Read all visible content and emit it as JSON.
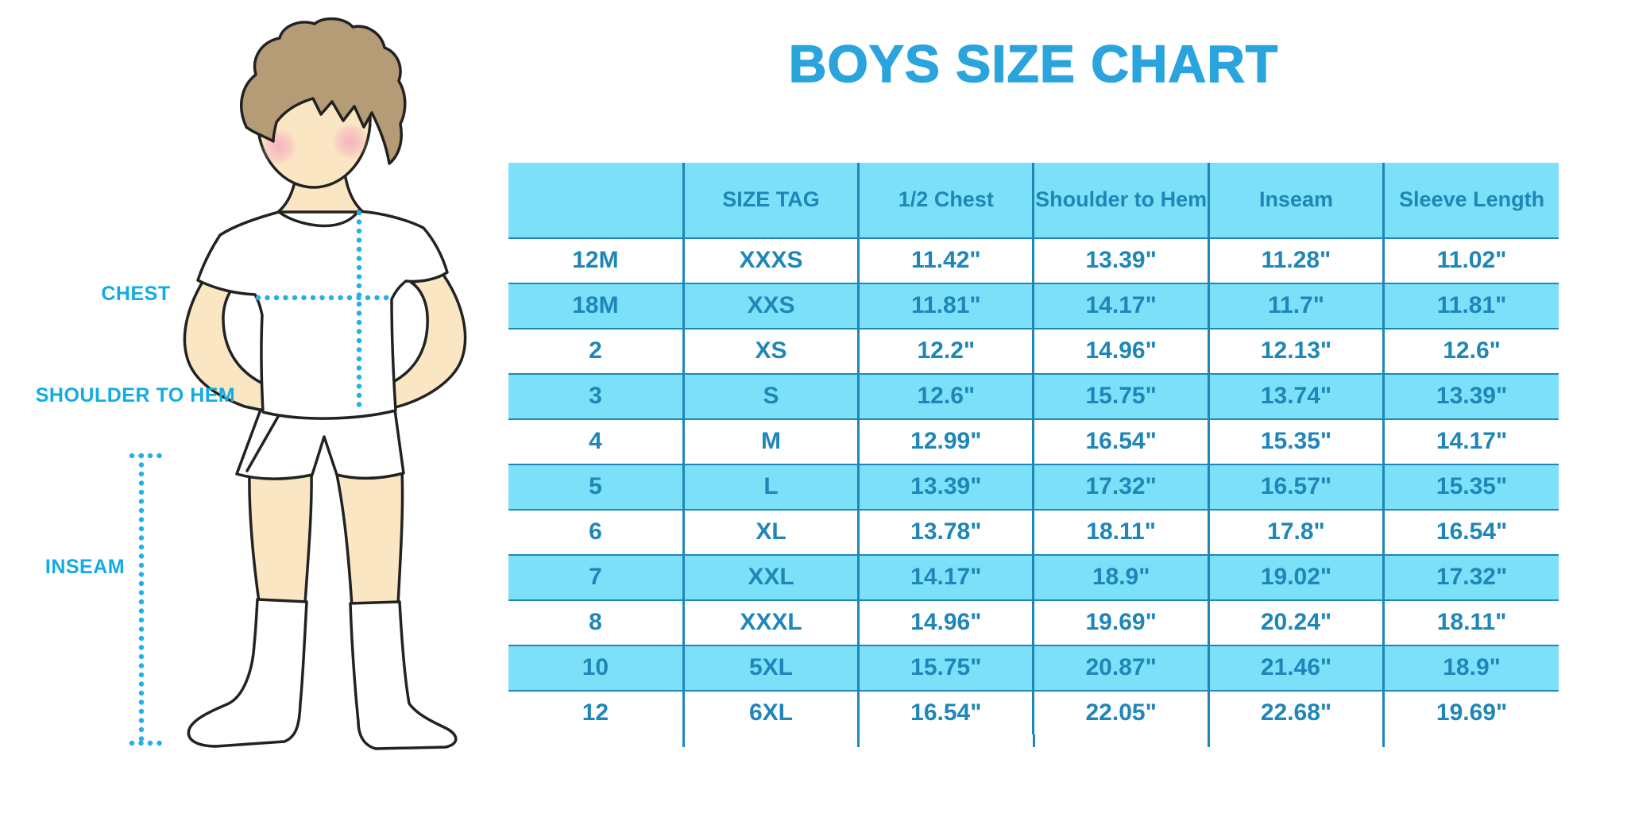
{
  "title": "BOYS SIZE CHART",
  "figure": {
    "labels": {
      "chest": "CHEST",
      "shoulder_to_hem": "SHOULDER TO HEM",
      "inseam": "INSEAM"
    }
  },
  "table": {
    "headers": [
      "",
      "SIZE TAG",
      "1/2 Chest",
      "Shoulder to Hem",
      "Inseam",
      "Sleeve Length"
    ],
    "rows": [
      {
        "size": "12M",
        "size_tag": "XXXS",
        "half_chest": "11.42\"",
        "shoulder_to_hem": "13.39\"",
        "inseam": "11.28\"",
        "sleeve_length": "11.02\""
      },
      {
        "size": "18M",
        "size_tag": "XXS",
        "half_chest": "11.81\"",
        "shoulder_to_hem": "14.17\"",
        "inseam": "11.7\"",
        "sleeve_length": "11.81\""
      },
      {
        "size": "2",
        "size_tag": "XS",
        "half_chest": "12.2\"",
        "shoulder_to_hem": "14.96\"",
        "inseam": "12.13\"",
        "sleeve_length": "12.6\""
      },
      {
        "size": "3",
        "size_tag": "S",
        "half_chest": "12.6\"",
        "shoulder_to_hem": "15.75\"",
        "inseam": "13.74\"",
        "sleeve_length": "13.39\""
      },
      {
        "size": "4",
        "size_tag": "M",
        "half_chest": "12.99\"",
        "shoulder_to_hem": "16.54\"",
        "inseam": "15.35\"",
        "sleeve_length": "14.17\""
      },
      {
        "size": "5",
        "size_tag": "L",
        "half_chest": "13.39\"",
        "shoulder_to_hem": "17.32\"",
        "inseam": "16.57\"",
        "sleeve_length": "15.35\""
      },
      {
        "size": "6",
        "size_tag": "XL",
        "half_chest": "13.78\"",
        "shoulder_to_hem": "18.11\"",
        "inseam": "17.8\"",
        "sleeve_length": "16.54\""
      },
      {
        "size": "7",
        "size_tag": "XXL",
        "half_chest": "14.17\"",
        "shoulder_to_hem": "18.9\"",
        "inseam": "19.02\"",
        "sleeve_length": "17.32\""
      },
      {
        "size": "8",
        "size_tag": "XXXL",
        "half_chest": "14.96\"",
        "shoulder_to_hem": "19.69\"",
        "inseam": "20.24\"",
        "sleeve_length": "18.11\""
      },
      {
        "size": "10",
        "size_tag": "5XL",
        "half_chest": "15.75\"",
        "shoulder_to_hem": "20.87\"",
        "inseam": "21.46\"",
        "sleeve_length": "18.9\""
      },
      {
        "size": "12",
        "size_tag": "6XL",
        "half_chest": "16.54\"",
        "shoulder_to_hem": "22.05\"",
        "inseam": "22.68\"",
        "sleeve_length": "19.69\""
      }
    ]
  },
  "colors": {
    "title_blue": "#2aa4dc",
    "table_text_and_borders": "#1e86b8",
    "row_fill_blue": "#7ce1f8",
    "label_cyan": "#10ace3",
    "dotted_line_cyan": "#25b1e4",
    "skin": "#fbe6c3",
    "hair": "#b59b76",
    "blush": "#f4aebf",
    "outline": "#222222"
  },
  "chart_data": {
    "type": "table",
    "title": "BOYS SIZE CHART",
    "columns": [
      "",
      "SIZE TAG",
      "1/2 Chest",
      "Shoulder to Hem",
      "Inseam",
      "Sleeve Length"
    ],
    "rows": [
      [
        "12M",
        "XXXS",
        "11.42\"",
        "13.39\"",
        "11.28\"",
        "11.02\""
      ],
      [
        "18M",
        "XXS",
        "11.81\"",
        "14.17\"",
        "11.7\"",
        "11.81\""
      ],
      [
        "2",
        "XS",
        "12.2\"",
        "14.96\"",
        "12.13\"",
        "12.6\""
      ],
      [
        "3",
        "S",
        "12.6\"",
        "15.75\"",
        "13.74\"",
        "13.39\""
      ],
      [
        "4",
        "M",
        "12.99\"",
        "16.54\"",
        "15.35\"",
        "14.17\""
      ],
      [
        "5",
        "L",
        "13.39\"",
        "17.32\"",
        "16.57\"",
        "15.35\""
      ],
      [
        "6",
        "XL",
        "13.78\"",
        "18.11\"",
        "17.8\"",
        "16.54\""
      ],
      [
        "7",
        "XXL",
        "14.17\"",
        "18.9\"",
        "19.02\"",
        "17.32\""
      ],
      [
        "8",
        "XXXL",
        "14.96\"",
        "19.69\"",
        "20.24\"",
        "18.11\""
      ],
      [
        "10",
        "5XL",
        "15.75\"",
        "20.87\"",
        "21.46\"",
        "18.9\""
      ],
      [
        "12",
        "6XL",
        "16.54\"",
        "22.05\"",
        "22.68\"",
        "19.69\""
      ]
    ],
    "units": "inches"
  }
}
